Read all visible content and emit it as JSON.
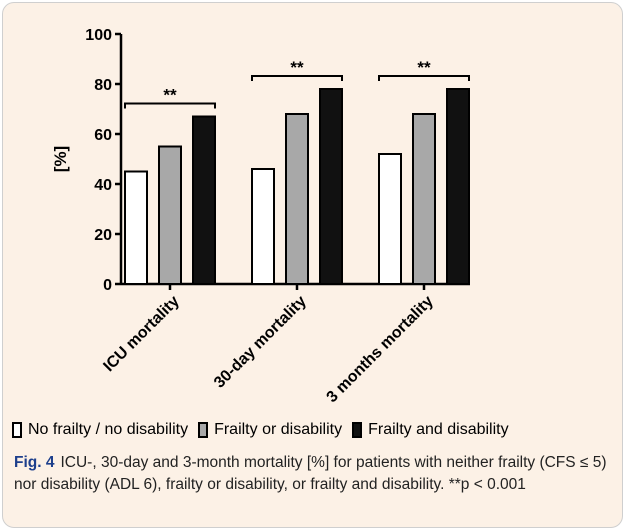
{
  "chart_data": {
    "type": "bar",
    "categories": [
      "ICU mortality",
      "30-day mortality",
      "3 months mortality"
    ],
    "series": [
      {
        "name": "No frailty / no disability",
        "values": [
          45,
          46,
          52
        ],
        "color": "#ffffff"
      },
      {
        "name": "Frailty or disability",
        "values": [
          55,
          68,
          68
        ],
        "color": "#a8a8a8"
      },
      {
        "name": "Frailty and disability",
        "values": [
          67,
          78,
          78
        ],
        "color": "#111111"
      }
    ],
    "ylabel": "[%]",
    "ylim": [
      0,
      100
    ],
    "yticks": [
      0,
      20,
      40,
      60,
      80,
      100
    ],
    "significance": [
      "**",
      "**",
      "**"
    ],
    "legend_position": "bottom"
  },
  "caption": {
    "label": "Fig. 4",
    "text": "ICU-, 30-day and 3-month mortality [%] for patients with neither frailty (CFS ≤ 5) nor disability (ADL 6), frailty or disability, or frailty and disability. **p < 0.001"
  },
  "colors": {
    "panel_background": "#fcf1e6",
    "caption_label": "#1d3f8c"
  }
}
